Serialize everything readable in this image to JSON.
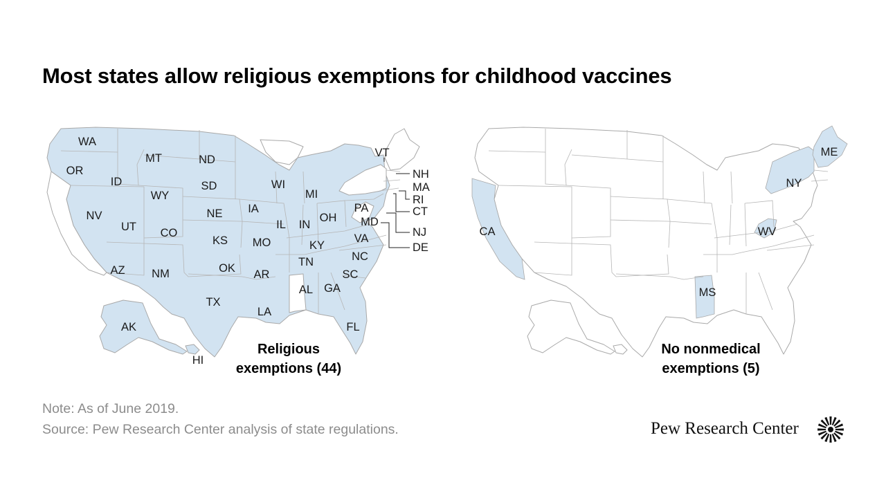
{
  "title": "Most states allow religious exemptions for childhood vaccines",
  "maps": [
    {
      "caption": [
        "Religious",
        "exemptions (44)"
      ],
      "highlighted_states": [
        "WA",
        "OR",
        "ID",
        "MT",
        "ND",
        "SD",
        "WY",
        "NV",
        "UT",
        "CO",
        "NE",
        "KS",
        "AZ",
        "NM",
        "OK",
        "TX",
        "IA",
        "MO",
        "AR",
        "LA",
        "WI",
        "MI",
        "IL",
        "IN",
        "OH",
        "KY",
        "TN",
        "AL",
        "GA",
        "FL",
        "SC",
        "NC",
        "VA",
        "PA",
        "MD",
        "DE",
        "NJ",
        "CT",
        "RI",
        "MA",
        "NH",
        "VT",
        "AK",
        "HI"
      ]
    },
    {
      "caption": [
        "No nonmedical",
        "exemptions (5)"
      ],
      "highlighted_states": [
        "CA",
        "MS",
        "WV",
        "NY",
        "ME"
      ]
    }
  ],
  "left_labels": {
    "WA": "WA",
    "OR": "OR",
    "ID": "ID",
    "MT": "MT",
    "ND": "ND",
    "SD": "SD",
    "WY": "WY",
    "NV": "NV",
    "UT": "UT",
    "CO": "CO",
    "NE": "NE",
    "KS": "KS",
    "AZ": "AZ",
    "NM": "NM",
    "OK": "OK",
    "TX": "TX",
    "IA": "IA",
    "MO": "MO",
    "AR": "AR",
    "LA": "LA",
    "WI": "WI",
    "MI": "MI",
    "IL": "IL",
    "IN": "IN",
    "OH": "OH",
    "KY": "KY",
    "TN": "TN",
    "AL": "AL",
    "GA": "GA",
    "FL": "FL",
    "SC": "SC",
    "NC": "NC",
    "VA": "VA",
    "PA": "PA",
    "MD": "MD",
    "AK": "AK",
    "HI": "HI",
    "VT": "VT",
    "NH": "NH",
    "MA": "MA",
    "RI": "RI",
    "CT": "CT",
    "NJ": "NJ",
    "DE": "DE"
  },
  "right_labels": {
    "CA": "CA",
    "MS": "MS",
    "WV": "WV",
    "NY": "NY",
    "ME": "ME"
  },
  "note": "Note: As of June 2019.",
  "source": "Source: Pew Research Center analysis of state regulations.",
  "brand": "Pew Research Center",
  "colors": {
    "highlight": "#d2e3f1",
    "outline": "#a8a8a8",
    "unshaded": "#ffffff",
    "note_text": "#8c8c8c"
  }
}
